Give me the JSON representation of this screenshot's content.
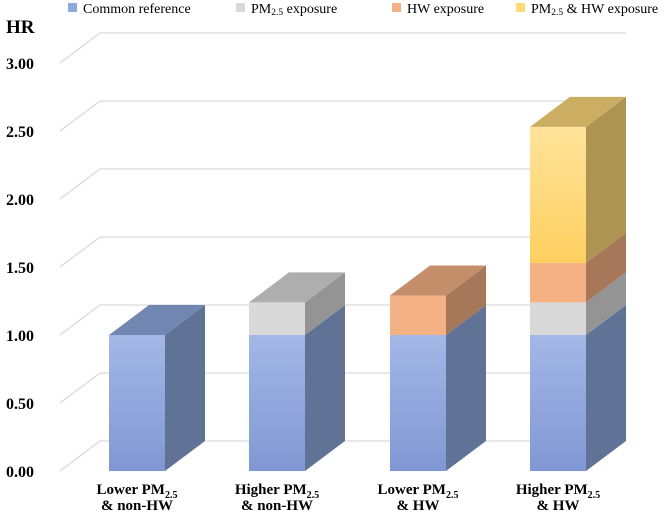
{
  "chart_data": {
    "type": "bar",
    "stacked": true,
    "three_d": true,
    "ylabel": "HR",
    "ylim": [
      0,
      3
    ],
    "yticks": [
      "0.00",
      "0.50",
      "1.00",
      "1.50",
      "2.00",
      "2.50",
      "3.00"
    ],
    "categories": [
      {
        "line1": "Lower PM",
        "sub1": "2.5",
        "line2": "& non-HW"
      },
      {
        "line1": "Higher PM",
        "sub1": "2.5",
        "line2": "& non-HW"
      },
      {
        "line1": "Lower PM",
        "sub1": "2.5",
        "line2": "& HW"
      },
      {
        "line1": "Higher PM",
        "sub1": "2.5",
        "line2": "& HW"
      }
    ],
    "series": [
      {
        "name": "Common reference",
        "legend_parts": [
          "Common reference"
        ],
        "values": [
          1.0,
          1.0,
          1.0,
          1.0
        ],
        "color": "#8FA8DE"
      },
      {
        "name": "PM2.5 exposure",
        "legend_parts": [
          "PM",
          "2.5",
          " exposure"
        ],
        "values": [
          0,
          0.24,
          0,
          0.24
        ],
        "color": "#D9D9D9"
      },
      {
        "name": "HW exposure",
        "legend_parts": [
          "HW exposure"
        ],
        "values": [
          0,
          0,
          0.29,
          0.29
        ],
        "color": "#F4B183"
      },
      {
        "name": "PM2.5 & HW exposure",
        "legend_parts": [
          "PM",
          "2.5",
          " & HW exposure"
        ],
        "values": [
          0,
          0,
          0,
          1.0
        ],
        "color": "#FFD97A"
      }
    ]
  }
}
